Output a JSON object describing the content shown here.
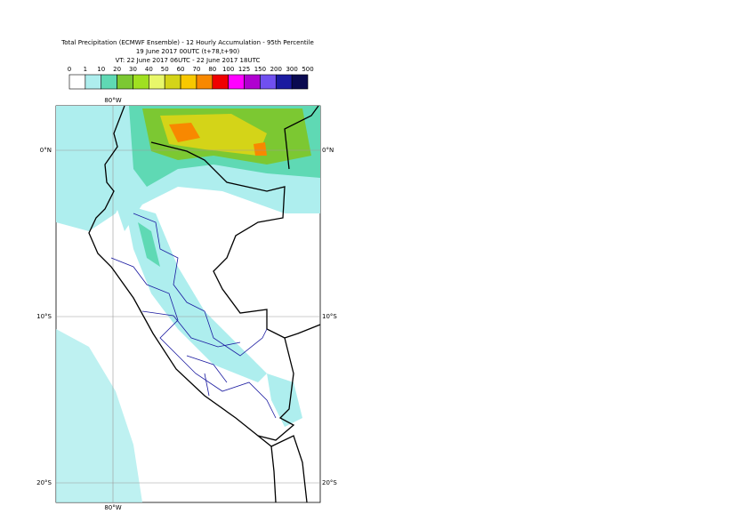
{
  "header": {
    "lines": [
      "Total Precipitation (ECMWF Ensemble) - 12 Hourly Accumulation - 95th Percentile",
      "19 June 2017 00UTC (t+78,t+90)",
      "VT: 22 June 2017 06UTC - 22 June 2017 18UTC"
    ]
  },
  "legend": {
    "labels": [
      "0",
      "1",
      "10",
      "20",
      "30",
      "40",
      "50",
      "60",
      "70",
      "80",
      "100",
      "125",
      "150",
      "200",
      "300",
      "500"
    ],
    "colors": [
      "#ffffff",
      "#aeeeee",
      "#5fd9b4",
      "#7cc832",
      "#a0e020",
      "#e8f76a",
      "#d4d418",
      "#f8c800",
      "#f88800",
      "#f00000",
      "#ff00ff",
      "#b000d0",
      "#7050f0",
      "#1a1aa0",
      "#0a0a50"
    ]
  },
  "map": {
    "lon_labels_top": [
      "80°W"
    ],
    "lon_labels_bottom": [
      "80°W"
    ],
    "lat_labels_left": [
      "0°N",
      "10°S",
      "20°S"
    ],
    "lat_labels_right": [
      "0°N",
      "10°S",
      "20°S"
    ]
  }
}
